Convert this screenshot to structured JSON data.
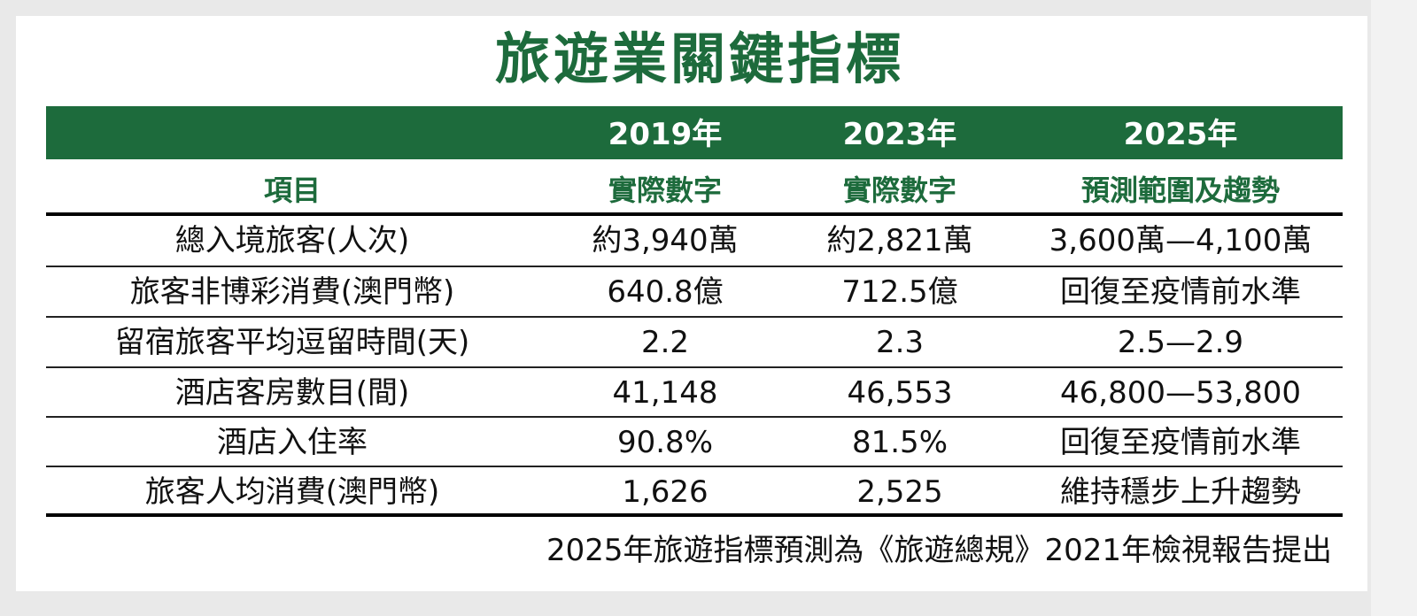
{
  "title": "旅遊業關鍵指標",
  "header": {
    "years": [
      "2019年",
      "2023年",
      "2025年"
    ],
    "item_label": "項目",
    "subheads": [
      "實際數字",
      "實際數字",
      "預測範圍及趨勢"
    ]
  },
  "rows": [
    {
      "item": "總入境旅客(人次)",
      "v2019": "約3,940萬",
      "v2023": "約2,821萬",
      "v2025": "3,600萬—4,100萬"
    },
    {
      "item": "旅客非博彩消費(澳門幣)",
      "v2019": "640.8億",
      "v2023": "712.5億",
      "v2025": "回復至疫情前水準"
    },
    {
      "item": "留宿旅客平均逗留時間(天)",
      "v2019": "2.2",
      "v2023": "2.3",
      "v2025": "2.5—2.9"
    },
    {
      "item": "酒店客房數目(間)",
      "v2019": "41,148",
      "v2023": "46,553",
      "v2025": "46,800—53,800"
    },
    {
      "item": "酒店入住率",
      "v2019": "90.8%",
      "v2023": "81.5%",
      "v2025": "回復至疫情前水準"
    },
    {
      "item": "旅客人均消費(澳門幣)",
      "v2019": "1,626",
      "v2023": "2,525",
      "v2025": "維持穩步上升趨勢"
    }
  ],
  "footnote": "2025年旅遊指標預測為《旅遊總規》2021年檢視報告提出",
  "colors": {
    "accent": "#1d6b3c"
  }
}
